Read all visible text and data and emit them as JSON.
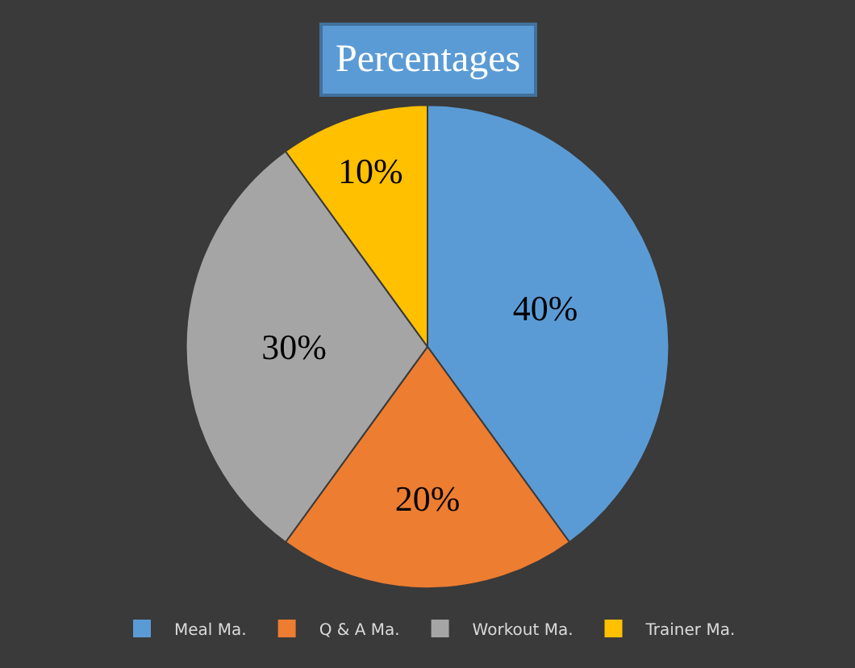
{
  "chart_data": {
    "type": "pie",
    "title": "Percentages",
    "categories": [
      "Meal Ma.",
      "Q & A Ma.",
      "Workout Ma.",
      "Trainer Ma."
    ],
    "values": [
      40,
      20,
      30,
      10
    ],
    "value_labels": [
      "40%",
      "20%",
      "30%",
      "10%"
    ],
    "colors": [
      "#5b9bd5",
      "#ed7d31",
      "#a5a5a5",
      "#ffc000"
    ],
    "legend": "bottom"
  }
}
